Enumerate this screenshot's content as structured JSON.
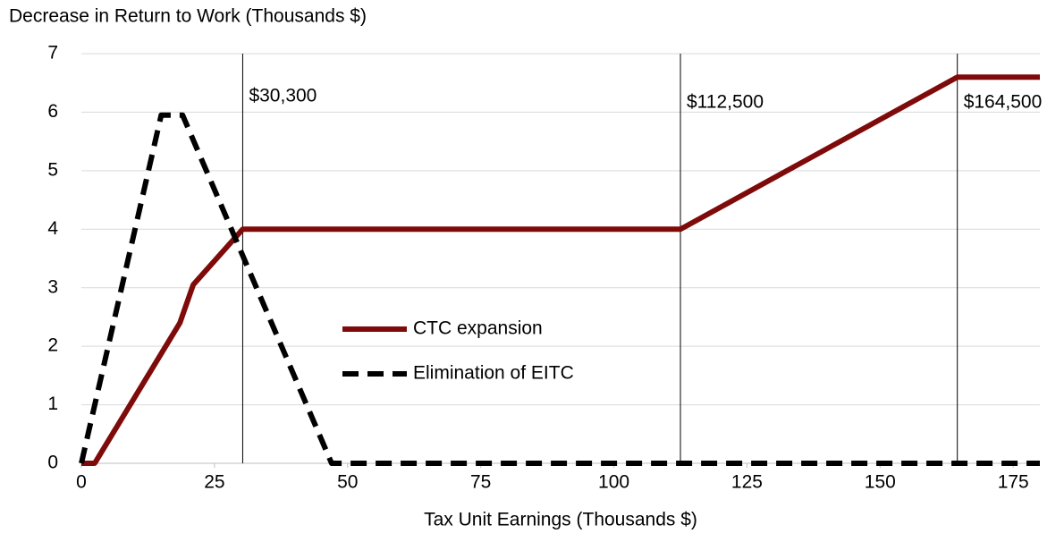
{
  "chart_data": {
    "type": "line",
    "title": "Decrease in Return to Work (Thousands $)",
    "x_label": "Tax Unit Earnings (Thousands $)",
    "xlim": [
      0,
      180
    ],
    "xticks": [
      0,
      25,
      50,
      75,
      100,
      125,
      150,
      175
    ],
    "ylim": [
      0,
      7
    ],
    "yticks": [
      0,
      1,
      2,
      3,
      4,
      5,
      6,
      7
    ],
    "grid": true,
    "legend": "center",
    "series": [
      {
        "name": "CTC expansion",
        "color": "#7f0a0a",
        "dashed": false,
        "x": [
          0,
          2.5,
          18.5,
          21,
          30.3,
          112.5,
          164.5,
          180
        ],
        "values": [
          0,
          0,
          2.4,
          3.05,
          4,
          4,
          6.6,
          6.6
        ]
      },
      {
        "name": "Elimination of EITC",
        "color": "#000000",
        "dashed": true,
        "x": [
          0,
          15,
          19,
          47,
          180
        ],
        "values": [
          0,
          5.95,
          5.95,
          0,
          0
        ]
      }
    ],
    "annotations": [
      {
        "x": 30.3,
        "label": "$30,300"
      },
      {
        "x": 112.5,
        "label": "$112,500"
      },
      {
        "x": 164.5,
        "label": "$164,500"
      }
    ]
  }
}
